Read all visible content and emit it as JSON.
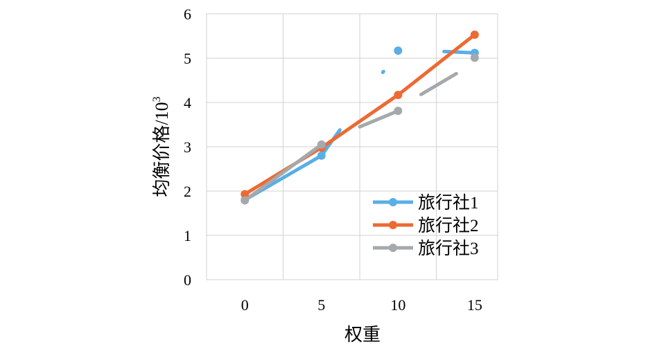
{
  "chart_data": {
    "type": "line",
    "xlabel": "权重",
    "ylabel": "均衡价格/10³",
    "ylabel_main": "均衡价格/10",
    "ylabel_sup": "3",
    "x_ticks": [
      "0",
      "5",
      "10",
      "15"
    ],
    "y_ticks": [
      "0",
      "1",
      "2",
      "3",
      "4",
      "5",
      "6"
    ],
    "xlim": [
      -2.5,
      16.5
    ],
    "ylim": [
      0,
      6
    ],
    "grid": true,
    "legend_position": "bottom-right",
    "series": [
      {
        "name": "旅行社1",
        "color": "#5aaee6",
        "points": [
          [
            0,
            1.8
          ],
          [
            5,
            2.8
          ],
          [
            10,
            5.17
          ],
          [
            15,
            5.12
          ]
        ],
        "segments": [
          [
            [
              0,
              1.8
            ],
            [
              5,
              2.8
            ]
          ],
          [
            [
              5,
              2.8
            ],
            [
              6.2,
              3.38
            ]
          ],
          [
            [
              9.0,
              4.68
            ],
            [
              9.05,
              4.7
            ]
          ],
          [
            [
              13.0,
              5.15
            ],
            [
              15,
              5.12
            ]
          ]
        ]
      },
      {
        "name": "旅行社2",
        "color": "#ec6a33",
        "points": [
          [
            0,
            1.93
          ],
          [
            5,
            2.98
          ],
          [
            10,
            4.17
          ],
          [
            15,
            5.53
          ]
        ],
        "segments": [
          [
            [
              0,
              1.93
            ],
            [
              5,
              2.98
            ]
          ],
          [
            [
              5,
              2.98
            ],
            [
              10,
              4.17
            ]
          ],
          [
            [
              10,
              4.17
            ],
            [
              15,
              5.53
            ]
          ]
        ]
      },
      {
        "name": "旅行社3",
        "color": "#a5a9ab",
        "points": [
          [
            0,
            1.79
          ],
          [
            5,
            3.05
          ],
          [
            10,
            3.81
          ],
          [
            15,
            5.01
          ]
        ],
        "segments": [
          [
            [
              0,
              1.79
            ],
            [
              5,
              3.05
            ]
          ],
          [
            [
              7.5,
              3.45
            ],
            [
              10,
              3.81
            ]
          ],
          [
            [
              11.5,
              4.18
            ],
            [
              13.8,
              4.65
            ]
          ]
        ]
      }
    ]
  }
}
